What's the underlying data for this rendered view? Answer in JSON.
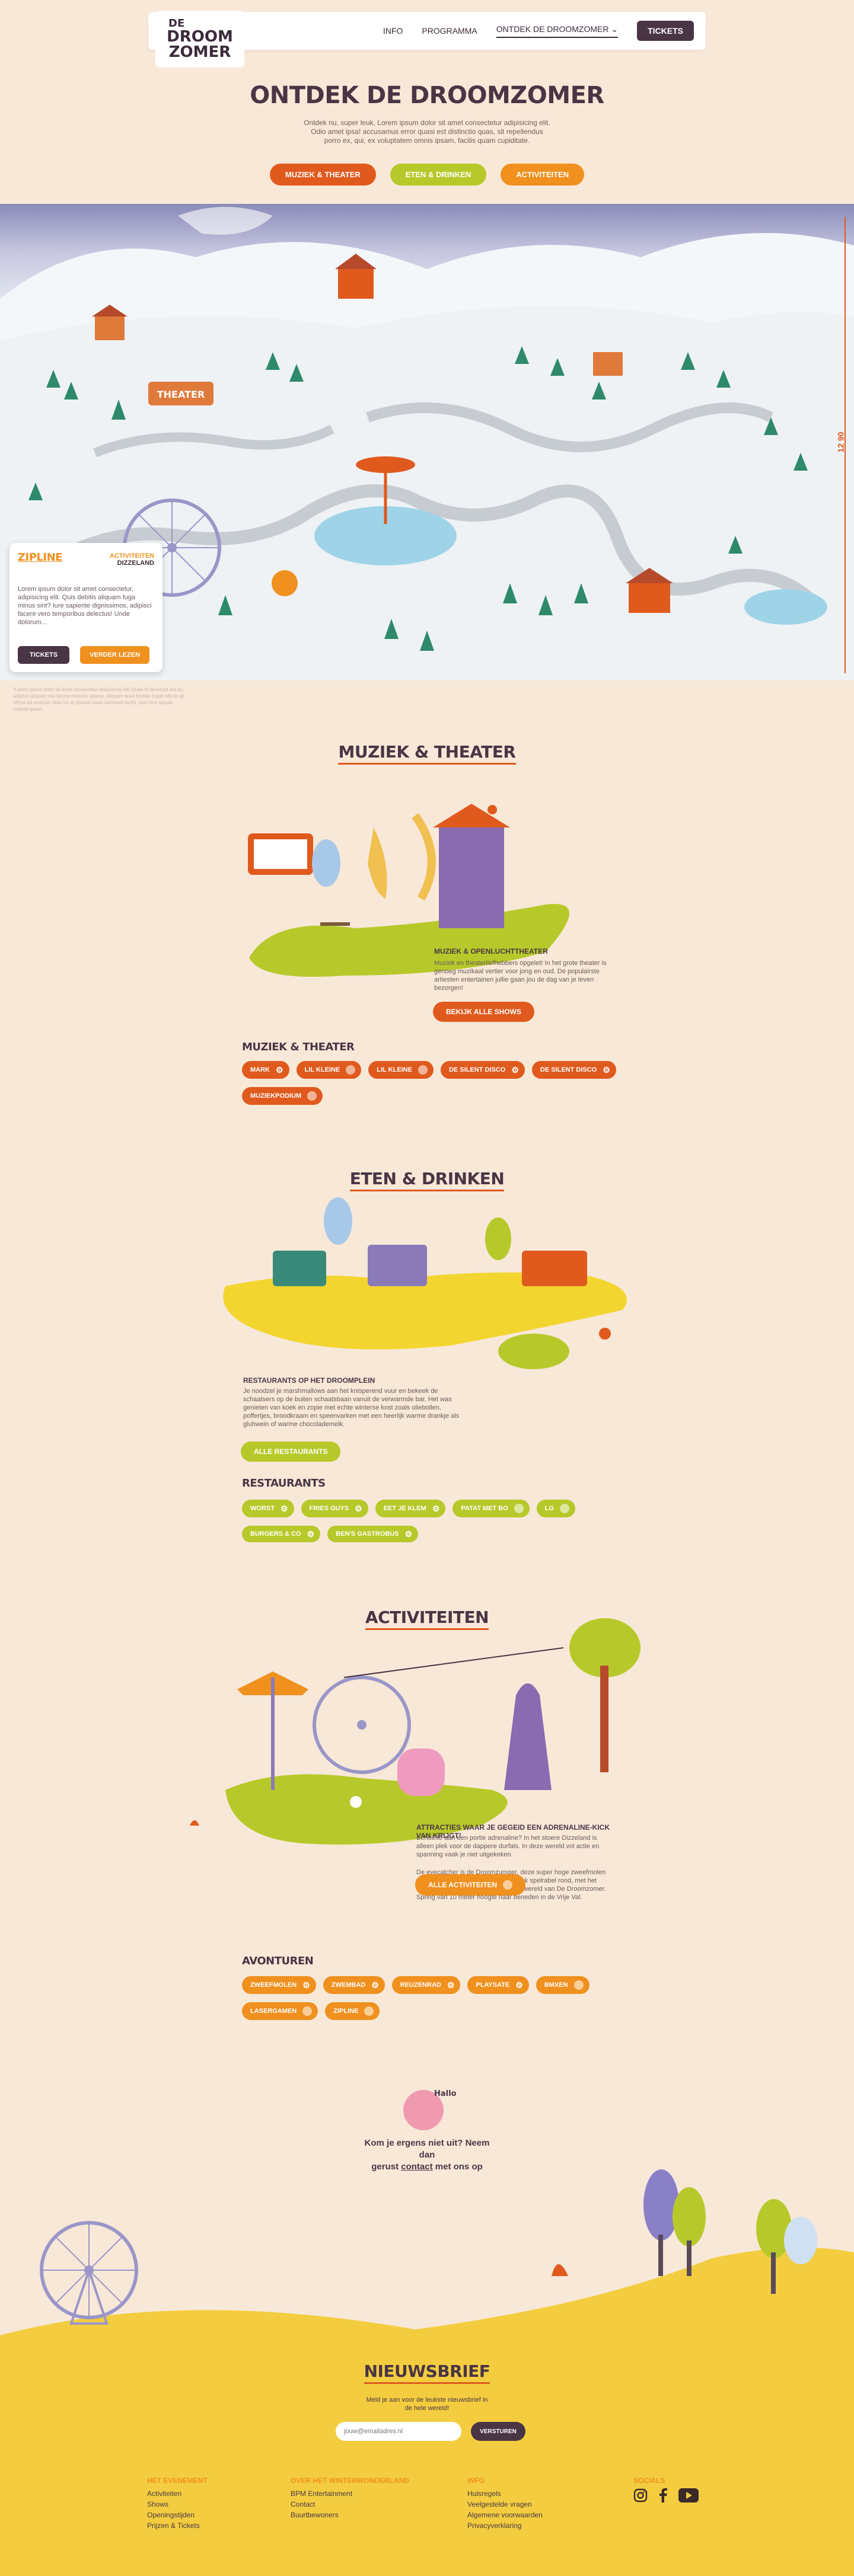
{
  "nav": {
    "logo_line1": "DE",
    "logo_line2": "DROOM",
    "logo_line3": "ZOMER",
    "items": [
      "INFO",
      "PROGRAMMA",
      "ONTDEK DE DROOMZOMER"
    ],
    "tickets": "TICKETS"
  },
  "hero": {
    "title": "ONTDEK DE DROOMZOMER",
    "intro": "Ontdek nu, super leuk, Lorem ipsum dolor sit amet consectetur adipisicing elit. Odio amet ipsa! accusamus error quasi est distinctio quas, sit repellendus porro ex, qui, ex voluptatem omnis ipsam, facilis quam cupiditate.",
    "categories": [
      "MUZIEK & THEATER",
      "ETEN & DRINKEN",
      "ACTIVITEITEN"
    ]
  },
  "map": {
    "sign_theater": "THEATER",
    "scale_label": "12 90"
  },
  "zipline_card": {
    "title": "ZIPLINE",
    "category": "ACTIVITEITEN",
    "location": "DIZZELAND",
    "text": "Lorem ipsum dolor sit amet consectetur, adipisicing elit. Quis debitis aliquam fuga minus sint? Iure sapiente dignissimos, adipisci facere vero temporibus delectus! Unde dolorum...",
    "tickets": "TICKETS",
    "read_more": "VERDER LEZEN"
  },
  "map_note": "*Lorem ipsum dolor sit amet consectetur adipisicing elit. Quae et deserunt aut ex, adipisci aliquam nisi facere maiores ratione.\nAliquam quas beatae fugiat officiis ab officia ad nostrum vitae hic at placeat esse commodi facilis, eum iure aliquid, impedit ipsam.",
  "music": {
    "title": "MUZIEK & THEATER",
    "feature_title": "MUZIEK & OPENLUCHTTHEATER",
    "feature_text": "Muziek en theaterliefhebbers opgelet! In het grote theater is genoeg muzikaal vertier voor jong en oud. De populairste artiesten entertainen jullie gaan jou de dag van je leven bezorgen!",
    "cta": "BEKIJK ALLE SHOWS",
    "list_title": "MUZIEK & THEATER",
    "tags": [
      "MARK",
      "LIL KLEINE",
      "LIL KLEINE",
      "DE SILENT DISCO",
      "DE SILENT DISCO",
      "MUZIEKPODIUM"
    ]
  },
  "food": {
    "title": "ETEN & DRINKEN",
    "feature_title": "RESTAURANTS OP HET DROOMPLEIN",
    "feature_text": "Je noodzel je marshmallows aan het knisperend vuur en bekeek de schaatsers op de buiten schaatsbaan vanuit de verwarmde bar. Het was genieten van koek en zopie met echte winterse kost zoals oliebollen, poffertjes, broodkraam en speenvarken met een heerlijk warme drankje als gluhwein of warme chocolademelk.",
    "cta": "ALLE RESTAURANTS",
    "list_title": "RESTAURANTS",
    "tags": [
      "WORST",
      "FRIES GUYS",
      "EET JE KLEM",
      "PATAT MET BO",
      "LG",
      "BURGERS & CO",
      "BEN'S GASTROBUS"
    ]
  },
  "activities": {
    "title": "ACTIVITEITEN",
    "feature_title": "ATTRACTIES WAAR JE GEGEID EEN ADRENALINE-KICK VAN KRIJGT!",
    "feature_text_1": "Behoefte aan een portie adrenaline? In het stoere Dizzeland is alleen plek voor de dappere durfals. In deze wereld vol actie en spanning vaak je niet uitgekeken.",
    "feature_text_2": "De eyecatcher is de Droomzumger, deze super hoge zweefmolen van 60 meter draait en zwaait met flink spelrabel rond, met het mooiste uitzicht over de sprookjeske wereld van De Droomzomer. Spring van 10 meter hoogte naar beneden in de Vrije Val.",
    "cta": "ALLE ACTIVITEITEN",
    "list_title": "AVONTUREN",
    "tags": [
      "ZWEEFMOLEN",
      "ZWEMBAD",
      "REUZENRAD",
      "PLAYSATE",
      "BMXEN",
      "LASERGAMEN",
      "ZIPLINE"
    ]
  },
  "contact": {
    "bubble": "Hallo",
    "line1": "Kom je ergens niet uit? Neem dan",
    "line2_a": "gerust ",
    "line2_link": "contact",
    "line2_b": " met ons op"
  },
  "newsletter": {
    "title": "NIEUWSBRIEF",
    "text": "Meld je aan voor de leukste nieuwsbrief in de hele wereld!",
    "placeholder": "jouw@emailadres.nl",
    "button": "VERSTUREN"
  },
  "footer": {
    "col1_title": "HET EVENEMENT",
    "col1_links": [
      "Activiteiten",
      "Shows",
      "Openingstijden",
      "Prijzen & Tickets"
    ],
    "col2_title": "OVER HET WINTERWONDERLAND",
    "col2_links": [
      "BPM Entertainment",
      "Contact",
      "Buurtbewoners"
    ],
    "col3_title": "INFO",
    "col3_links": [
      "Huisregels",
      "Veelgestelde vragen",
      "Algemene voorwaarden",
      "Privacyverklaring"
    ],
    "col4_title": "SOCIALS"
  },
  "colors": {
    "red": "#e05a1e",
    "green": "#b7c92a",
    "orange": "#f0901e",
    "dark": "#4a3545",
    "background": "#f8e8d8",
    "footer_yellow": "#f3cd3f"
  }
}
